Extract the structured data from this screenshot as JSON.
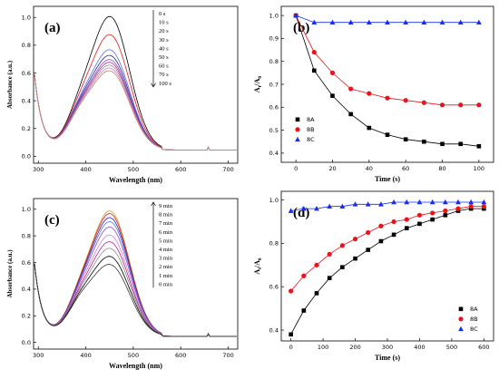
{
  "chart_data": [
    {
      "panel": "(a)",
      "type": "line",
      "xlabel": "Wavelength (nm)",
      "ylabel": "Absorbance (a.u.)",
      "xlim": [
        290,
        720
      ],
      "ylim": [
        -0.05,
        1.08
      ],
      "xticks": [
        300,
        400,
        500,
        600,
        700
      ],
      "yticks": [
        0.0,
        0.2,
        0.4,
        0.6,
        0.8,
        1.0
      ],
      "legend": [
        "0    s",
        "10   s",
        "20   s",
        "30   s",
        "40   s",
        "50   s",
        "60   s",
        "70   s",
        "100 s"
      ],
      "legend_position": "top-right",
      "colors": [
        "#000000",
        "#e8141c",
        "#5b6ee6",
        "#2a2a9c",
        "#8a4fb8",
        "#b02a8a",
        "#8c8c8c",
        "#d87ad8",
        "#c08a6a"
      ],
      "series": [
        {
          "name": "0    s",
          "values": [
            1.0
          ]
        },
        {
          "name": "10   s",
          "values": [
            0.87
          ]
        },
        {
          "name": "20   s",
          "values": [
            0.76
          ]
        },
        {
          "name": "30   s",
          "values": [
            0.72
          ]
        },
        {
          "name": "40   s",
          "values": [
            0.69
          ]
        },
        {
          "name": "50   s",
          "values": [
            0.67
          ]
        },
        {
          "name": "60   s",
          "values": [
            0.65
          ]
        },
        {
          "name": "70   s",
          "values": [
            0.63
          ]
        },
        {
          "name": "100 s",
          "values": [
            0.61
          ]
        }
      ],
      "annotation": "decreasing arrow"
    },
    {
      "panel": "(b)",
      "type": "scatter",
      "xlabel": "Time (s)",
      "ylabel": "At/A0",
      "xlim": [
        -8,
        108
      ],
      "ylim": [
        0.36,
        1.04
      ],
      "xticks": [
        0,
        20,
        40,
        60,
        80,
        100
      ],
      "yticks": [
        0.4,
        0.5,
        0.6,
        0.7,
        0.8,
        0.9,
        1.0
      ],
      "legend_position": "center-left",
      "x": [
        0,
        10,
        20,
        30,
        40,
        50,
        60,
        70,
        80,
        90,
        100
      ],
      "series": [
        {
          "name": "8A",
          "color": "#000000",
          "marker": "square",
          "values": [
            1.0,
            0.76,
            0.65,
            0.57,
            0.51,
            0.48,
            0.46,
            0.45,
            0.44,
            0.44,
            0.43
          ]
        },
        {
          "name": "8B",
          "color": "#e8141c",
          "marker": "circle",
          "values": [
            1.0,
            0.84,
            0.75,
            0.68,
            0.66,
            0.64,
            0.63,
            0.62,
            0.61,
            0.61,
            0.61
          ]
        },
        {
          "name": "8C",
          "color": "#1a2ee8",
          "marker": "triangle",
          "values": [
            1.0,
            0.97,
            0.97,
            0.97,
            0.97,
            0.97,
            0.97,
            0.97,
            0.97,
            0.97,
            0.97
          ]
        }
      ]
    },
    {
      "panel": "(c)",
      "type": "line",
      "xlabel": "Wavelength (nm)",
      "ylabel": "Absorbance (a.u.)",
      "xlim": [
        290,
        720
      ],
      "ylim": [
        -0.05,
        1.08
      ],
      "xticks": [
        300,
        400,
        500,
        600,
        700
      ],
      "yticks": [
        0.0,
        0.2,
        0.4,
        0.6,
        0.8,
        1.0
      ],
      "legend": [
        "9 min",
        "8 min",
        "7 min",
        "6 min",
        "5 min",
        "4 min",
        "3 min",
        "2 min",
        "1 min",
        "0 min"
      ],
      "legend_position": "top-right",
      "colors": [
        "#c89a2a",
        "#e8141c",
        "#2a2a9c",
        "#5b6ee6",
        "#8a4fb8",
        "#d87ad8",
        "#b02a8a",
        "#8c8c8c",
        "#000000",
        "#3a3a3a"
      ],
      "series": [
        {
          "name": "9 min",
          "values": [
            0.98
          ]
        },
        {
          "name": "8 min",
          "values": [
            0.96
          ]
        },
        {
          "name": "7 min",
          "values": [
            0.93
          ]
        },
        {
          "name": "6 min",
          "values": [
            0.9
          ]
        },
        {
          "name": "5 min",
          "values": [
            0.86
          ]
        },
        {
          "name": "4 min",
          "values": [
            0.8
          ]
        },
        {
          "name": "3 min",
          "values": [
            0.75
          ]
        },
        {
          "name": "2 min",
          "values": [
            0.7
          ]
        },
        {
          "name": "1 min",
          "values": [
            0.64
          ]
        },
        {
          "name": "0 min",
          "values": [
            0.58
          ]
        }
      ],
      "annotation": "increasing arrow"
    },
    {
      "panel": "(d)",
      "type": "scatter",
      "xlabel": "Time (s)",
      "ylabel": "At/A0",
      "xlim": [
        -30,
        630
      ],
      "ylim": [
        0.35,
        1.04
      ],
      "xticks": [
        0,
        100,
        200,
        300,
        400,
        500,
        600
      ],
      "yticks": [
        0.4,
        0.6,
        0.8,
        1.0
      ],
      "legend_position": "bottom-right",
      "x": [
        0,
        40,
        80,
        120,
        160,
        200,
        240,
        280,
        320,
        360,
        400,
        440,
        480,
        520,
        560,
        600
      ],
      "series": [
        {
          "name": "8A",
          "color": "#000000",
          "marker": "square",
          "values": [
            0.38,
            0.49,
            0.57,
            0.64,
            0.69,
            0.73,
            0.77,
            0.81,
            0.84,
            0.87,
            0.89,
            0.91,
            0.93,
            0.95,
            0.96,
            0.96
          ]
        },
        {
          "name": "8B",
          "color": "#e8141c",
          "marker": "circle",
          "values": [
            0.58,
            0.65,
            0.7,
            0.75,
            0.79,
            0.82,
            0.85,
            0.88,
            0.9,
            0.91,
            0.93,
            0.94,
            0.95,
            0.96,
            0.97,
            0.97
          ]
        },
        {
          "name": "8C",
          "color": "#1a2ee8",
          "marker": "triangle",
          "values": [
            0.95,
            0.96,
            0.96,
            0.97,
            0.97,
            0.98,
            0.98,
            0.98,
            0.99,
            0.99,
            0.99,
            0.99,
            0.99,
            0.99,
            0.99,
            0.99
          ]
        }
      ]
    }
  ]
}
